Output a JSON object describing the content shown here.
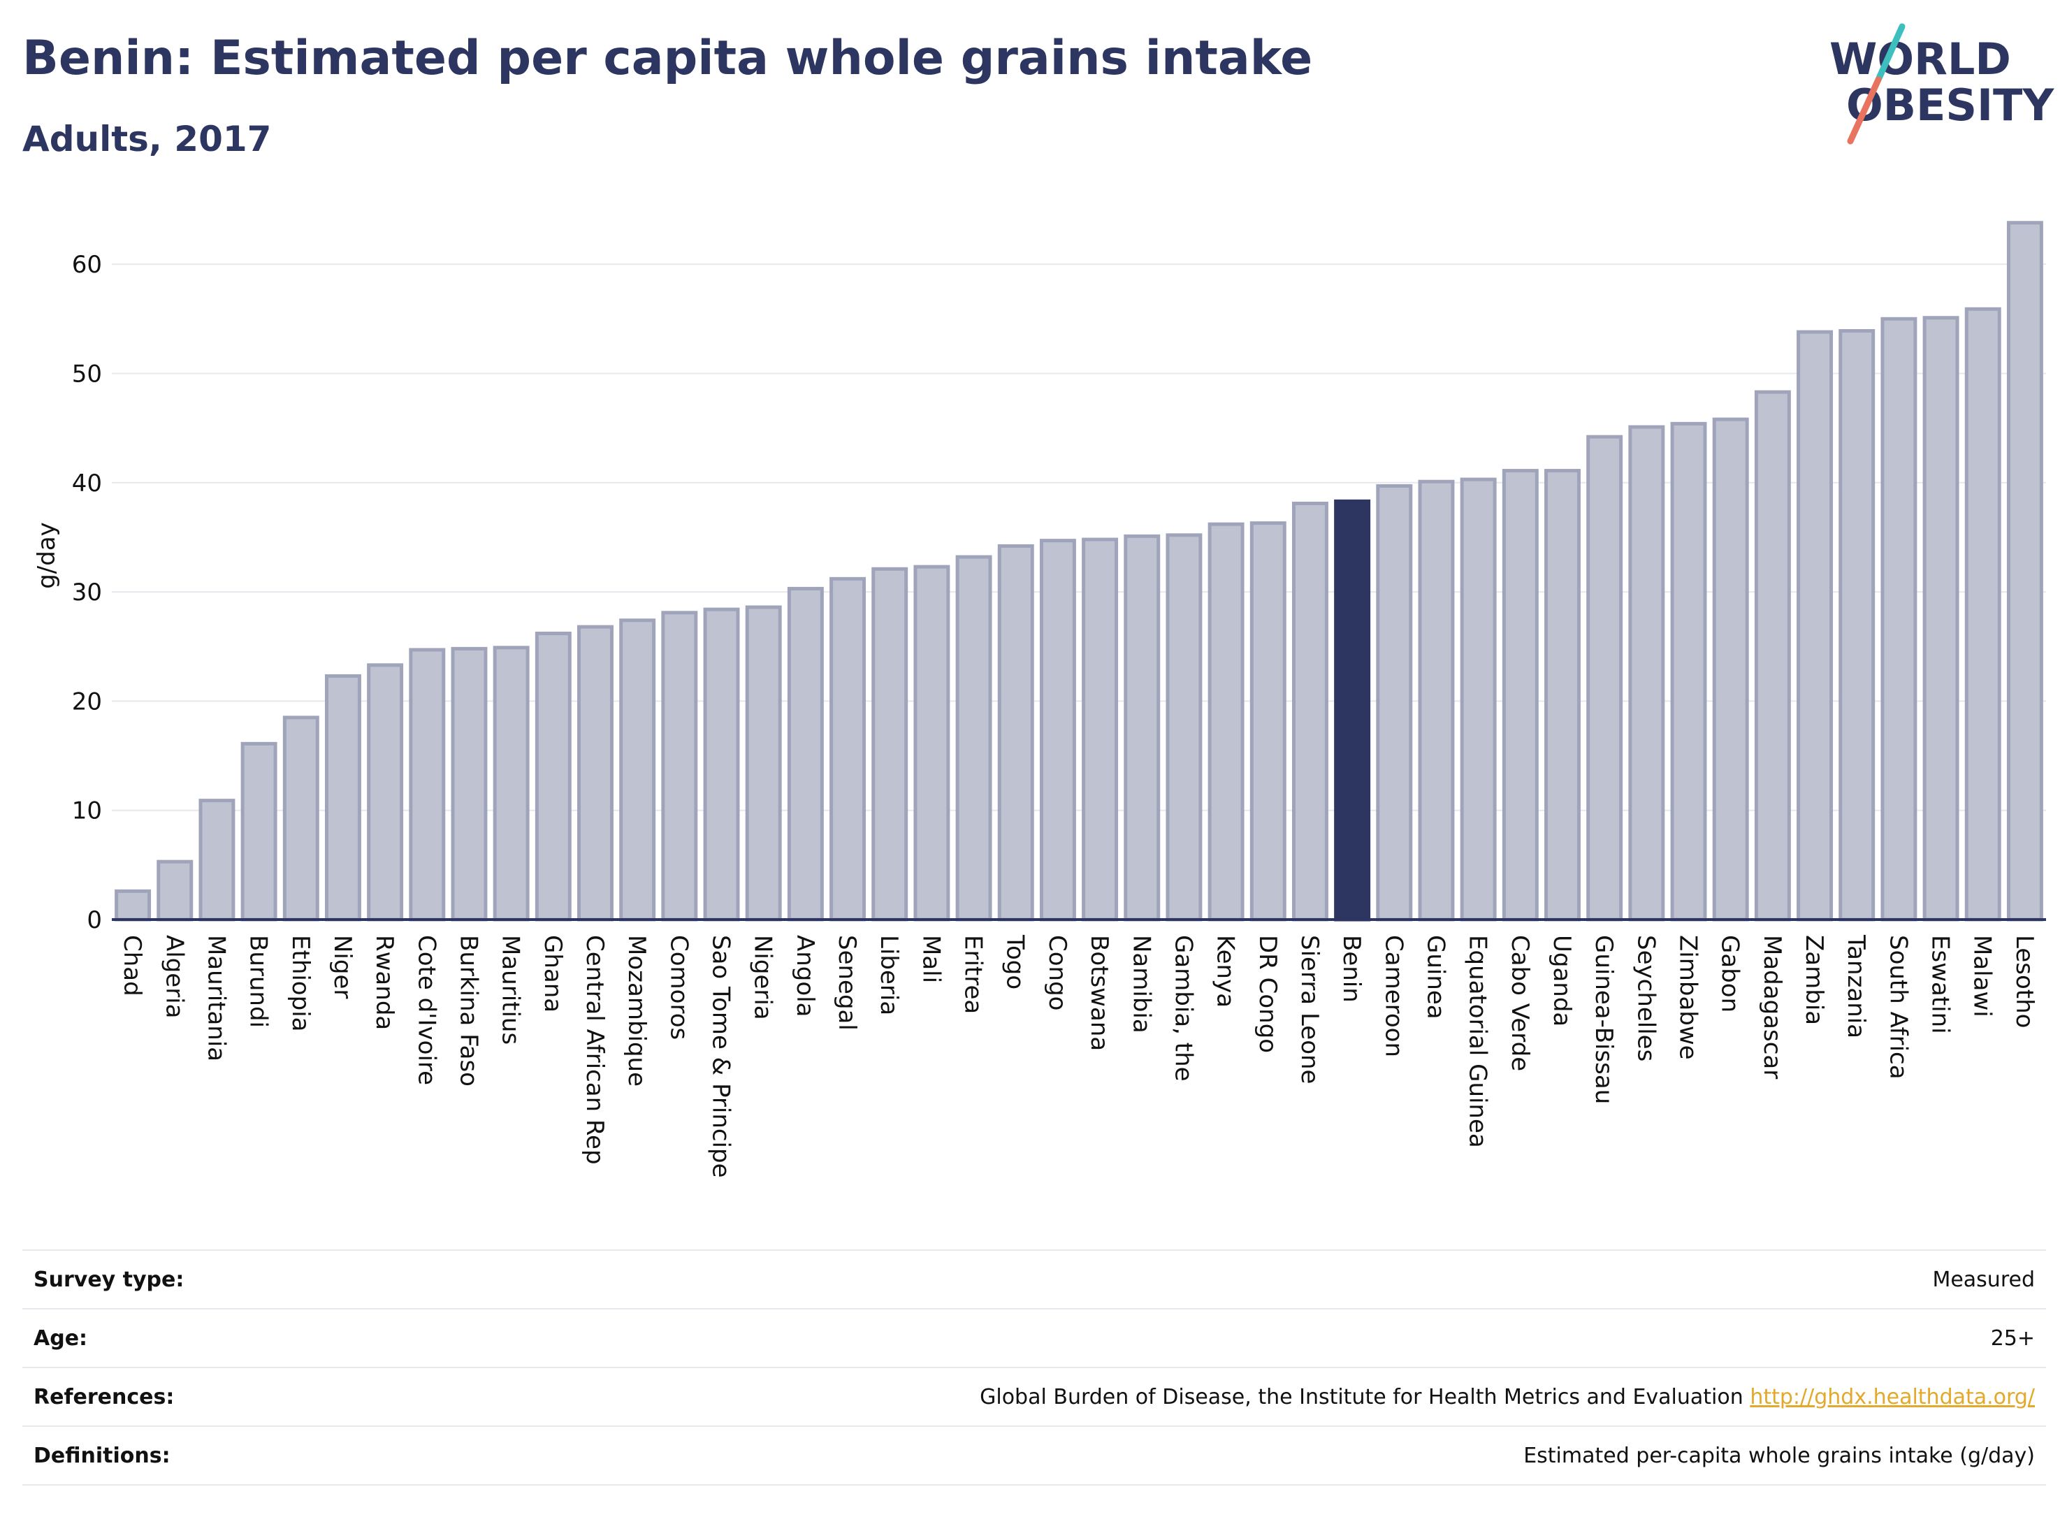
{
  "header": {
    "title": "Benin: Estimated per capita whole grains intake",
    "subtitle": "Adults, 2017"
  },
  "logo": {
    "line1": "WORLD",
    "line2": "OBESITY",
    "accent_teal": "#3dbfbf",
    "accent_coral": "#e8735f"
  },
  "colors": {
    "bar_default": "#bfc3d1",
    "bar_border": "#9fa4ba",
    "bar_highlight": "#2d3561",
    "grid": "#e6e8ee",
    "axis": "#2d3561"
  },
  "chart_data": {
    "type": "bar",
    "title": "Benin: Estimated per capita whole grains intake",
    "subtitle": "Adults, 2017",
    "ylabel": "g/day",
    "xlabel": "",
    "ylim": [
      0,
      65
    ],
    "yticks": [
      0,
      10,
      20,
      30,
      40,
      50,
      60
    ],
    "grid": true,
    "highlight": "Benin",
    "categories": [
      "Chad",
      "Algeria",
      "Mauritania",
      "Burundi",
      "Ethiopia",
      "Niger",
      "Rwanda",
      "Cote d'Ivoire",
      "Burkina Faso",
      "Mauritius",
      "Ghana",
      "Central African Rep",
      "Mozambique",
      "Comoros",
      "Sao Tome & Principe",
      "Nigeria",
      "Angola",
      "Senegal",
      "Liberia",
      "Mali",
      "Eritrea",
      "Togo",
      "Congo",
      "Botswana",
      "Namibia",
      "Gambia, the",
      "Kenya",
      "DR Congo",
      "Sierra Leone",
      "Benin",
      "Cameroon",
      "Guinea",
      "Equatorial Guinea",
      "Cabo Verde",
      "Uganda",
      "Guinea-Bissau",
      "Seychelles",
      "Zimbabwe",
      "Gabon",
      "Madagascar",
      "Zambia",
      "Tanzania",
      "South Africa",
      "Eswatini",
      "Malawi",
      "Lesotho"
    ],
    "values": [
      2.6,
      5.3,
      10.9,
      16.1,
      18.5,
      22.3,
      23.3,
      24.7,
      24.8,
      24.9,
      26.2,
      26.8,
      27.4,
      28.1,
      28.4,
      28.6,
      30.3,
      31.2,
      32.1,
      32.3,
      33.2,
      34.2,
      34.7,
      34.8,
      35.1,
      35.2,
      36.2,
      36.3,
      38.1,
      38.3,
      39.7,
      40.1,
      40.3,
      41.1,
      41.1,
      44.2,
      45.1,
      45.4,
      45.8,
      48.3,
      53.8,
      53.9,
      55.0,
      55.1,
      55.9,
      63.8
    ]
  },
  "info": {
    "survey_type": {
      "label": "Survey type:",
      "value": "Measured"
    },
    "age": {
      "label": "Age:",
      "value": "25+"
    },
    "references": {
      "label": "References:",
      "value": "Global Burden of Disease, the Institute for Health Metrics and Evaluation",
      "link": "http://ghdx.healthdata.org/"
    },
    "definitions": {
      "label": "Definitions:",
      "value": "Estimated per-capita whole grains intake (g/day)"
    }
  }
}
